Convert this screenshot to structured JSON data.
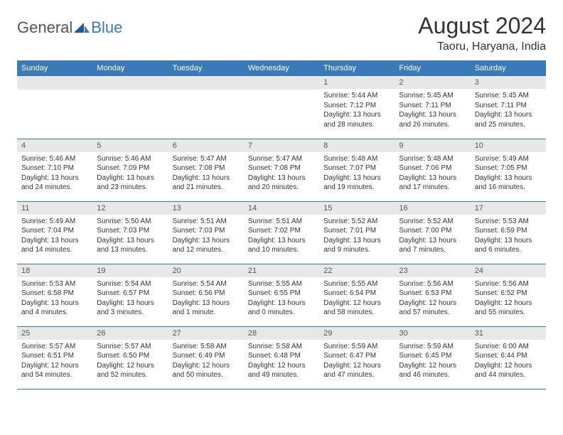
{
  "logo": {
    "general": "General",
    "blue": "Blue"
  },
  "title": "August 2024",
  "location": "Taoru, Haryana, India",
  "colors": {
    "header_bg": "#3a7ab8",
    "header_text": "#ffffff",
    "daynum_bg": "#e8e8e8",
    "row_border": "#3a7ab8",
    "body_text": "#333333",
    "background": "#ffffff"
  },
  "day_headers": [
    "Sunday",
    "Monday",
    "Tuesday",
    "Wednesday",
    "Thursday",
    "Friday",
    "Saturday"
  ],
  "weeks": [
    [
      null,
      null,
      null,
      null,
      {
        "n": "1",
        "sunrise": "Sunrise: 5:44 AM",
        "sunset": "Sunset: 7:12 PM",
        "daylight": "Daylight: 13 hours and 28 minutes."
      },
      {
        "n": "2",
        "sunrise": "Sunrise: 5:45 AM",
        "sunset": "Sunset: 7:11 PM",
        "daylight": "Daylight: 13 hours and 26 minutes."
      },
      {
        "n": "3",
        "sunrise": "Sunrise: 5:45 AM",
        "sunset": "Sunset: 7:11 PM",
        "daylight": "Daylight: 13 hours and 25 minutes."
      }
    ],
    [
      {
        "n": "4",
        "sunrise": "Sunrise: 5:46 AM",
        "sunset": "Sunset: 7:10 PM",
        "daylight": "Daylight: 13 hours and 24 minutes."
      },
      {
        "n": "5",
        "sunrise": "Sunrise: 5:46 AM",
        "sunset": "Sunset: 7:09 PM",
        "daylight": "Daylight: 13 hours and 23 minutes."
      },
      {
        "n": "6",
        "sunrise": "Sunrise: 5:47 AM",
        "sunset": "Sunset: 7:08 PM",
        "daylight": "Daylight: 13 hours and 21 minutes."
      },
      {
        "n": "7",
        "sunrise": "Sunrise: 5:47 AM",
        "sunset": "Sunset: 7:08 PM",
        "daylight": "Daylight: 13 hours and 20 minutes."
      },
      {
        "n": "8",
        "sunrise": "Sunrise: 5:48 AM",
        "sunset": "Sunset: 7:07 PM",
        "daylight": "Daylight: 13 hours and 19 minutes."
      },
      {
        "n": "9",
        "sunrise": "Sunrise: 5:48 AM",
        "sunset": "Sunset: 7:06 PM",
        "daylight": "Daylight: 13 hours and 17 minutes."
      },
      {
        "n": "10",
        "sunrise": "Sunrise: 5:49 AM",
        "sunset": "Sunset: 7:05 PM",
        "daylight": "Daylight: 13 hours and 16 minutes."
      }
    ],
    [
      {
        "n": "11",
        "sunrise": "Sunrise: 5:49 AM",
        "sunset": "Sunset: 7:04 PM",
        "daylight": "Daylight: 13 hours and 14 minutes."
      },
      {
        "n": "12",
        "sunrise": "Sunrise: 5:50 AM",
        "sunset": "Sunset: 7:03 PM",
        "daylight": "Daylight: 13 hours and 13 minutes."
      },
      {
        "n": "13",
        "sunrise": "Sunrise: 5:51 AM",
        "sunset": "Sunset: 7:03 PM",
        "daylight": "Daylight: 13 hours and 12 minutes."
      },
      {
        "n": "14",
        "sunrise": "Sunrise: 5:51 AM",
        "sunset": "Sunset: 7:02 PM",
        "daylight": "Daylight: 13 hours and 10 minutes."
      },
      {
        "n": "15",
        "sunrise": "Sunrise: 5:52 AM",
        "sunset": "Sunset: 7:01 PM",
        "daylight": "Daylight: 13 hours and 9 minutes."
      },
      {
        "n": "16",
        "sunrise": "Sunrise: 5:52 AM",
        "sunset": "Sunset: 7:00 PM",
        "daylight": "Daylight: 13 hours and 7 minutes."
      },
      {
        "n": "17",
        "sunrise": "Sunrise: 5:53 AM",
        "sunset": "Sunset: 6:59 PM",
        "daylight": "Daylight: 13 hours and 6 minutes."
      }
    ],
    [
      {
        "n": "18",
        "sunrise": "Sunrise: 5:53 AM",
        "sunset": "Sunset: 6:58 PM",
        "daylight": "Daylight: 13 hours and 4 minutes."
      },
      {
        "n": "19",
        "sunrise": "Sunrise: 5:54 AM",
        "sunset": "Sunset: 6:57 PM",
        "daylight": "Daylight: 13 hours and 3 minutes."
      },
      {
        "n": "20",
        "sunrise": "Sunrise: 5:54 AM",
        "sunset": "Sunset: 6:56 PM",
        "daylight": "Daylight: 13 hours and 1 minute."
      },
      {
        "n": "21",
        "sunrise": "Sunrise: 5:55 AM",
        "sunset": "Sunset: 6:55 PM",
        "daylight": "Daylight: 13 hours and 0 minutes."
      },
      {
        "n": "22",
        "sunrise": "Sunrise: 5:55 AM",
        "sunset": "Sunset: 6:54 PM",
        "daylight": "Daylight: 12 hours and 58 minutes."
      },
      {
        "n": "23",
        "sunrise": "Sunrise: 5:56 AM",
        "sunset": "Sunset: 6:53 PM",
        "daylight": "Daylight: 12 hours and 57 minutes."
      },
      {
        "n": "24",
        "sunrise": "Sunrise: 5:56 AM",
        "sunset": "Sunset: 6:52 PM",
        "daylight": "Daylight: 12 hours and 55 minutes."
      }
    ],
    [
      {
        "n": "25",
        "sunrise": "Sunrise: 5:57 AM",
        "sunset": "Sunset: 6:51 PM",
        "daylight": "Daylight: 12 hours and 54 minutes."
      },
      {
        "n": "26",
        "sunrise": "Sunrise: 5:57 AM",
        "sunset": "Sunset: 6:50 PM",
        "daylight": "Daylight: 12 hours and 52 minutes."
      },
      {
        "n": "27",
        "sunrise": "Sunrise: 5:58 AM",
        "sunset": "Sunset: 6:49 PM",
        "daylight": "Daylight: 12 hours and 50 minutes."
      },
      {
        "n": "28",
        "sunrise": "Sunrise: 5:58 AM",
        "sunset": "Sunset: 6:48 PM",
        "daylight": "Daylight: 12 hours and 49 minutes."
      },
      {
        "n": "29",
        "sunrise": "Sunrise: 5:59 AM",
        "sunset": "Sunset: 6:47 PM",
        "daylight": "Daylight: 12 hours and 47 minutes."
      },
      {
        "n": "30",
        "sunrise": "Sunrise: 5:59 AM",
        "sunset": "Sunset: 6:45 PM",
        "daylight": "Daylight: 12 hours and 46 minutes."
      },
      {
        "n": "31",
        "sunrise": "Sunrise: 6:00 AM",
        "sunset": "Sunset: 6:44 PM",
        "daylight": "Daylight: 12 hours and 44 minutes."
      }
    ]
  ]
}
